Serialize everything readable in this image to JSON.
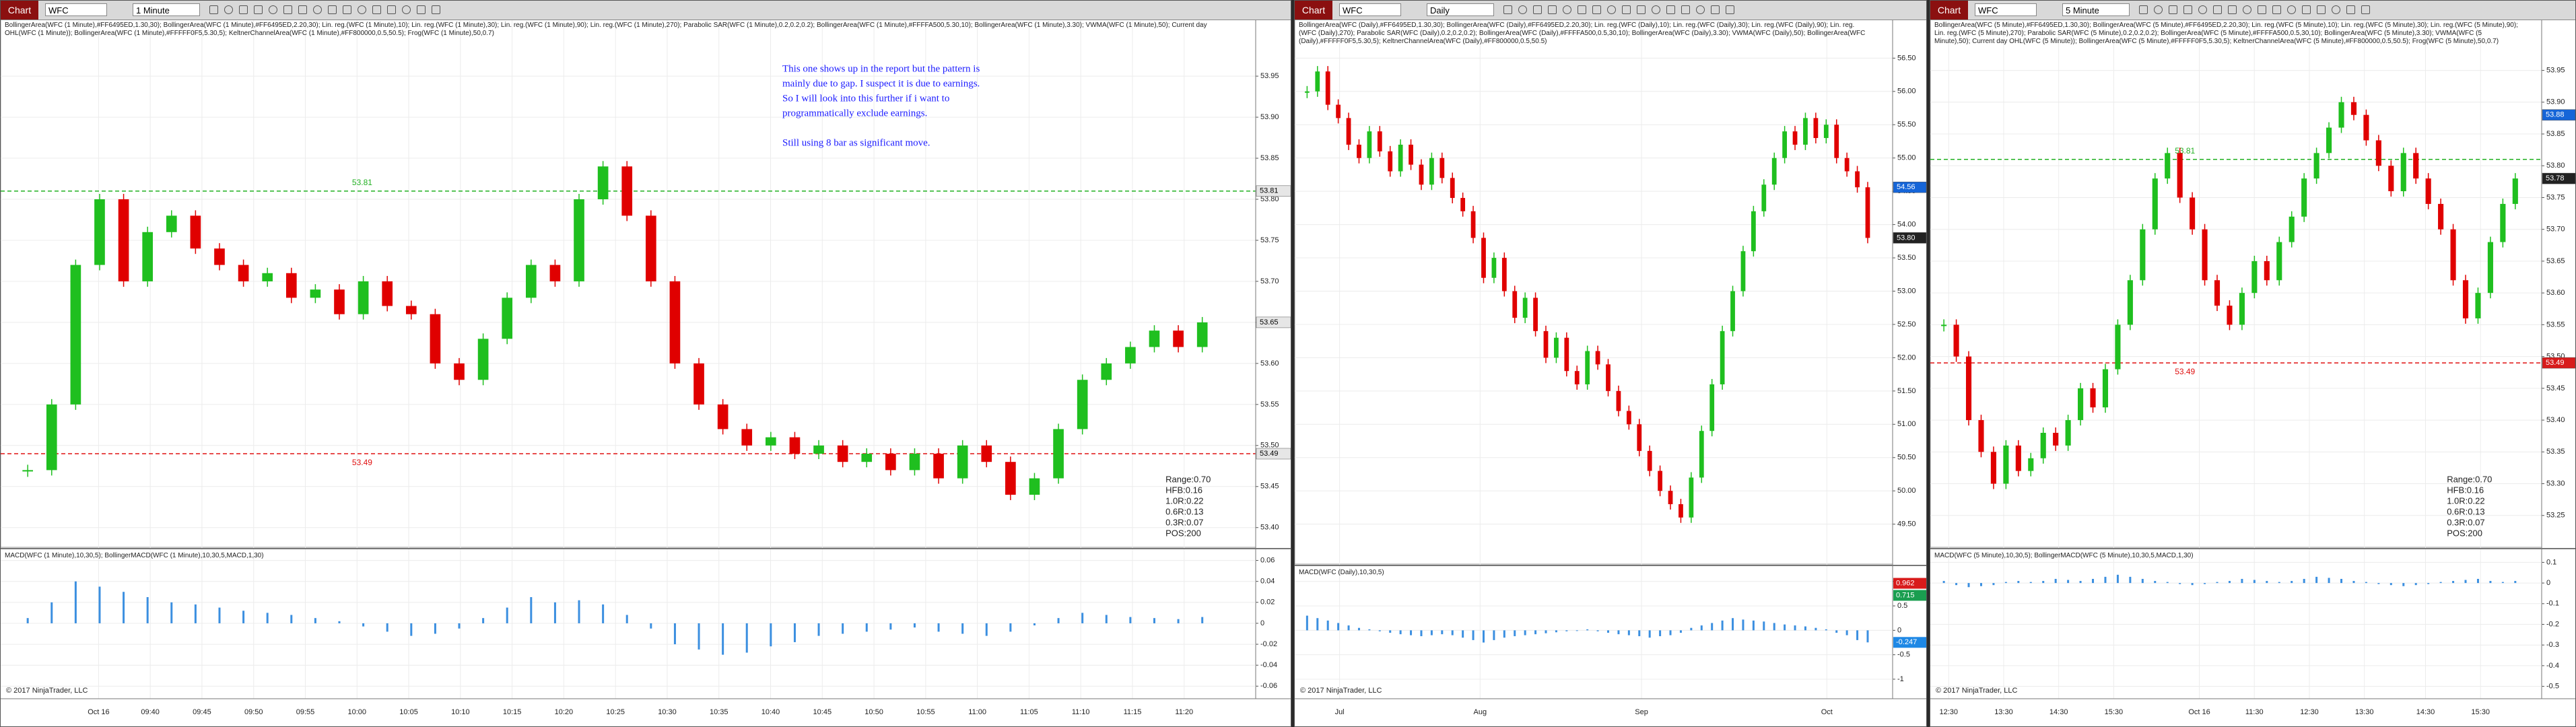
{
  "panels": [
    {
      "title_bar": {
        "app": "Chart",
        "instrument": "WFC",
        "interval": "1 Minute"
      },
      "legend": "BollingerArea(WFC (1 Minute),#FF6495ED,1.30,30); BollingerArea(WFC (1 Minute),#FF6495ED,2.20,30); Lin. reg.(WFC (1 Minute),10); Lin. reg.(WFC (1 Minute),30); Lin. reg.(WFC (1 Minute),90); Lin. reg.(WFC (1 Minute),270); Parabolic SAR(WFC (1 Minute),0.2,0.2,0.2); BollingerArea(WFC (1 Minute),#FFFFA500,5.30,10); BollingerArea(WFC (1 Minute),3.30); VWMA(WFC (1 Minute),50); Current day OHL(WFC (1 Minute)); BollingerArea(WFC (1 Minute),#FFFFF0F5,5.30,5); KeltnerChannelArea(WFC (1 Minute),#FF800000,0.5,50.5); Frog(WFC (1 Minute),50,0.7)",
      "price": {
        "ylim": [
          53.376,
          54.019
        ],
        "yticks": [
          53.95,
          {
            "value": 53.9,
            "label": "53.90"
          },
          53.85,
          {
            "value": 53.8,
            "label": "53.80"
          },
          53.75,
          {
            "value": 53.7,
            "label": "53.70"
          },
          53.65,
          {
            "value": 53.6,
            "label": "53.60"
          },
          53.55,
          {
            "value": 53.5,
            "label": "53.50"
          },
          53.45,
          {
            "value": 53.4,
            "label": "53.40"
          }
        ],
        "closes": [
          53.47,
          53.55,
          53.72,
          53.8,
          53.7,
          53.76,
          53.78,
          53.74,
          53.72,
          53.7,
          53.71,
          53.68,
          53.69,
          53.66,
          53.7,
          53.67,
          53.66,
          53.6,
          53.58,
          53.63,
          53.68,
          53.72,
          53.7,
          53.8,
          53.84,
          53.78,
          53.7,
          53.6,
          53.55,
          53.52,
          53.5,
          53.51,
          53.49,
          53.5,
          53.48,
          53.49,
          53.47,
          53.49,
          53.46,
          53.5,
          53.48,
          53.44,
          53.46,
          53.52,
          53.58,
          53.6,
          53.62,
          53.64,
          53.62,
          53.65
        ],
        "markers": [
          {
            "value": 53.81,
            "color": "#e6e6e6"
          },
          {
            "value": 53.65,
            "color": "#e6e6e6"
          },
          {
            "value": 53.49,
            "color": "#e6e6e6"
          }
        ],
        "levels": [
          {
            "value": 53.81,
            "color": "#22b022"
          },
          {
            "value": 53.49,
            "color": "#e01010"
          }
        ]
      },
      "annotation": [
        "This one shows up in the report but the pattern is",
        "mainly due to gap. I suspect it is due to earnings.",
        "So I will look into this further if i want to",
        "programmatically exclude earnings.",
        "Still using 8 bar as significant move."
      ],
      "stats": [
        "Range:0.70",
        "HFB:0.16",
        "1.0R:0.22",
        "0.6R:0.13",
        "0.3R:0.07",
        "POS:200"
      ],
      "macd": {
        "legend": "MACD(WFC (1 Minute),10,30,5); BollingerMACD(WFC (1 Minute),10,30,5,MACD,1,30)",
        "ylim": [
          -0.072,
          0.07
        ],
        "yticks": [
          0.06,
          0.04,
          0.02,
          0,
          -0.02,
          -0.04,
          -0.06
        ],
        "histogram": [
          0.005,
          0.02,
          0.04,
          0.035,
          0.03,
          0.025,
          0.02,
          0.018,
          0.015,
          0.012,
          0.01,
          0.008,
          0.005,
          0.002,
          -0.003,
          -0.008,
          -0.012,
          -0.01,
          -0.005,
          0.005,
          0.015,
          0.025,
          0.02,
          0.022,
          0.018,
          0.008,
          -0.005,
          -0.02,
          -0.025,
          -0.03,
          -0.028,
          -0.022,
          -0.018,
          -0.012,
          -0.01,
          -0.008,
          -0.006,
          -0.004,
          -0.008,
          -0.01,
          -0.012,
          -0.008,
          -0.002,
          0.005,
          0.01,
          0.008,
          0.006,
          0.005,
          0.004,
          0.006
        ],
        "markers": []
      },
      "time_axis": [
        "Oct 16",
        "09:40",
        "09:45",
        "09:50",
        "09:55",
        "10:00",
        "10:05",
        "10:10",
        "10:15",
        "10:20",
        "10:25",
        "10:30",
        "10:35",
        "10:40",
        "10:45",
        "10:50",
        "10:55",
        "11:00",
        "11:05",
        "11:10",
        "11:15",
        "11:20"
      ],
      "copyright": "© 2017 NinjaTrader, LLC"
    },
    {
      "title_bar": {
        "app": "Chart",
        "instrument": "WFC",
        "interval": "Daily"
      },
      "legend": "BollingerArea(WFC (Daily),#FF6495ED,1.30,30); BollingerArea(WFC (Daily),#FF6495ED,2.20,30); Lin. reg.(WFC (Daily),10); Lin. reg.(WFC (Daily),30); Lin. reg.(WFC (Daily),90); Lin. reg.(WFC (Daily),270); Parabolic SAR(WFC (Daily),0.2,0.2,0.2); BollingerArea(WFC (Daily),#FFFFA500,0.5,30,10); BollingerArea(WFC (Daily),3.30); VWMA(WFC (Daily),50); BollingerArea(WFC (Daily),#FFFFF0F5,5.30,5); KeltnerChannelArea(WFC (Daily),#FF800000,0.5,50.5)",
      "price": {
        "ylim": [
          48.9,
          57.08
        ],
        "yticks": [
          {
            "value": 56.5,
            "label": "56.50"
          },
          {
            "value": 56,
            "label": "56.00"
          },
          {
            "value": 55.5,
            "label": "55.50"
          },
          {
            "value": 55,
            "label": "55.00"
          },
          {
            "value": 54.5,
            "label": "54.50"
          },
          {
            "value": 54,
            "label": "54.00"
          },
          {
            "value": 53.5,
            "label": "53.50"
          },
          {
            "value": 53,
            "label": "53.00"
          },
          {
            "value": 52.5,
            "label": "52.50"
          },
          {
            "value": 52,
            "label": "52.00"
          },
          {
            "value": 51.5,
            "label": "51.50"
          },
          {
            "value": 51,
            "label": "51.00"
          },
          {
            "value": 50.5,
            "label": "50.50"
          },
          {
            "value": 50,
            "label": "50.00"
          },
          {
            "value": 49.5,
            "label": "49.50"
          }
        ],
        "closes": [
          56.0,
          56.3,
          55.8,
          55.6,
          55.2,
          55.0,
          55.4,
          55.1,
          54.8,
          55.2,
          54.9,
          54.6,
          55.0,
          54.7,
          54.4,
          54.2,
          53.8,
          53.2,
          53.5,
          53.0,
          52.6,
          52.9,
          52.4,
          52.0,
          52.3,
          51.8,
          51.6,
          52.1,
          51.9,
          51.5,
          51.2,
          51.0,
          50.6,
          50.3,
          50.0,
          49.8,
          49.6,
          50.2,
          50.9,
          51.6,
          52.4,
          53.0,
          53.6,
          54.2,
          54.6,
          55.0,
          55.4,
          55.2,
          55.6,
          55.3,
          55.5,
          55.0,
          54.8,
          54.56,
          53.8
        ],
        "markers": [
          {
            "value": 54.56,
            "color": "#1565d8"
          },
          {
            "value": 53.8,
            "label": "53.80",
            "color": "#222222"
          }
        ],
        "levels": []
      },
      "macd": {
        "legend": "MACD(WFC (Daily),10,30,5)",
        "ylim": [
          -1.4,
          1.3
        ],
        "yticks": [
          1,
          0.5,
          0,
          -0.5,
          -1
        ],
        "histogram": [
          0.3,
          0.25,
          0.2,
          0.15,
          0.1,
          0.05,
          0.02,
          -0.02,
          -0.05,
          -0.08,
          -0.1,
          -0.12,
          -0.1,
          -0.08,
          -0.1,
          -0.15,
          -0.2,
          -0.25,
          -0.2,
          -0.15,
          -0.12,
          -0.1,
          -0.08,
          -0.06,
          -0.04,
          -0.02,
          0,
          0.02,
          -0.02,
          -0.05,
          -0.08,
          -0.1,
          -0.12,
          -0.15,
          -0.12,
          -0.1,
          -0.05,
          0.05,
          0.1,
          0.15,
          0.2,
          0.25,
          0.22,
          0.2,
          0.18,
          0.15,
          0.12,
          0.1,
          0.08,
          0.05,
          0.02,
          -0.05,
          -0.1,
          -0.2,
          -0.247
        ],
        "markers": [
          {
            "value": 0.962,
            "color": "#d81b1b"
          },
          {
            "value": 0.715,
            "color": "#1a9e50"
          },
          {
            "value": -0.247,
            "color": "#1e88e5"
          }
        ]
      },
      "time_axis": [
        "Jul",
        "Aug",
        "Sep",
        "Oct"
      ],
      "copyright": "© 2017 NinjaTrader, LLC"
    },
    {
      "title_bar": {
        "app": "Chart",
        "instrument": "WFC",
        "interval": "5 Minute"
      },
      "legend": "BollingerArea(WFC (5 Minute),#FF6495ED,1.30,30); BollingerArea(WFC (5 Minute),#FF6495ED,2.20,30); Lin. reg.(WFC (5 Minute),10); Lin. reg.(WFC (5 Minute),30); Lin. reg.(WFC (5 Minute),90); Lin. reg.(WFC (5 Minute),270); Parabolic SAR(WFC (5 Minute),0.2,0.2,0.2); BollingerArea(WFC (5 Minute),#FFFFA500,0.5,30,10); BollingerArea(WFC (5 Minute),3.30); VWMA(WFC (5 Minute),50); Current day OHL(WFC (5 Minute)); BollingerArea(WFC (5 Minute),#FFFFF0F5,5.30,5); KeltnerChannelArea(WFC (5 Minute),#FF800000,0.5,50.5); Frog(WFC (5 Minute),50,0.7)",
      "price": {
        "ylim": [
          53.2,
          54.03
        ],
        "yticks": [
          53.95,
          {
            "value": 53.9,
            "label": "53.90"
          },
          53.85,
          {
            "value": 53.8,
            "label": "53.80"
          },
          53.75,
          {
            "value": 53.7,
            "label": "53.70"
          },
          53.65,
          {
            "value": 53.6,
            "label": "53.60"
          },
          53.55,
          {
            "value": 53.5,
            "label": "53.50"
          },
          53.45,
          {
            "value": 53.4,
            "label": "53.40"
          },
          53.35,
          {
            "value": 53.3,
            "label": "53.30"
          },
          53.25
        ],
        "closes": [
          53.55,
          53.5,
          53.4,
          53.35,
          53.3,
          53.36,
          53.32,
          53.34,
          53.38,
          53.36,
          53.4,
          53.45,
          53.42,
          53.48,
          53.55,
          53.62,
          53.7,
          53.78,
          53.82,
          53.75,
          53.7,
          53.62,
          53.58,
          53.55,
          53.6,
          53.65,
          53.62,
          53.68,
          53.72,
          53.78,
          53.82,
          53.86,
          53.9,
          53.88,
          53.84,
          53.8,
          53.76,
          53.82,
          53.78,
          53.74,
          53.7,
          53.62,
          53.56,
          53.6,
          53.68,
          53.74,
          53.78
        ],
        "markers": [
          {
            "value": 53.88,
            "color": "#1565d8"
          },
          {
            "value": 53.78,
            "color": "#222222"
          },
          {
            "value": 53.49,
            "color": "#d81b1b"
          }
        ],
        "levels": [
          {
            "value": 53.81,
            "color": "#22b022"
          },
          {
            "value": 53.49,
            "color": "#e01010"
          }
        ]
      },
      "stats": [
        "Range:0.70",
        "HFB:0.16",
        "1.0R:0.22",
        "0.6R:0.13",
        "0.3R:0.07",
        "POS:200"
      ],
      "macd": {
        "legend": "MACD(WFC (5 Minute),10,30,5); BollingerMACD(WFC (5 Minute),10,30,5,MACD,1,30)",
        "ylim": [
          -0.56,
          0.16
        ],
        "yticks": [
          0.1,
          0,
          -0.1,
          -0.2,
          -0.3,
          -0.4,
          -0.5
        ],
        "histogram": [
          0.01,
          -0.01,
          -0.02,
          -0.015,
          -0.01,
          0.005,
          0.01,
          0.005,
          0.01,
          0.02,
          0.015,
          0.01,
          0.02,
          0.03,
          0.04,
          0.03,
          0.02,
          0.01,
          0.005,
          -0.005,
          -0.01,
          -0.005,
          0.005,
          0.01,
          0.02,
          0.015,
          0.01,
          0.005,
          0.01,
          0.02,
          0.03,
          0.025,
          0.02,
          0.01,
          0.005,
          -0.005,
          -0.01,
          -0.015,
          -0.01,
          -0.005,
          0.005,
          0.01,
          0.015,
          0.02,
          0.01,
          0.005,
          0.01
        ],
        "markers": []
      },
      "time_axis": [
        "12:30",
        "13:30",
        "14:30",
        "15:30",
        "Oct 16",
        "11:30",
        "12:30",
        "13:30",
        "14:30",
        "15:30"
      ],
      "copyright": "© 2017 NinjaTrader, LLC"
    }
  ]
}
